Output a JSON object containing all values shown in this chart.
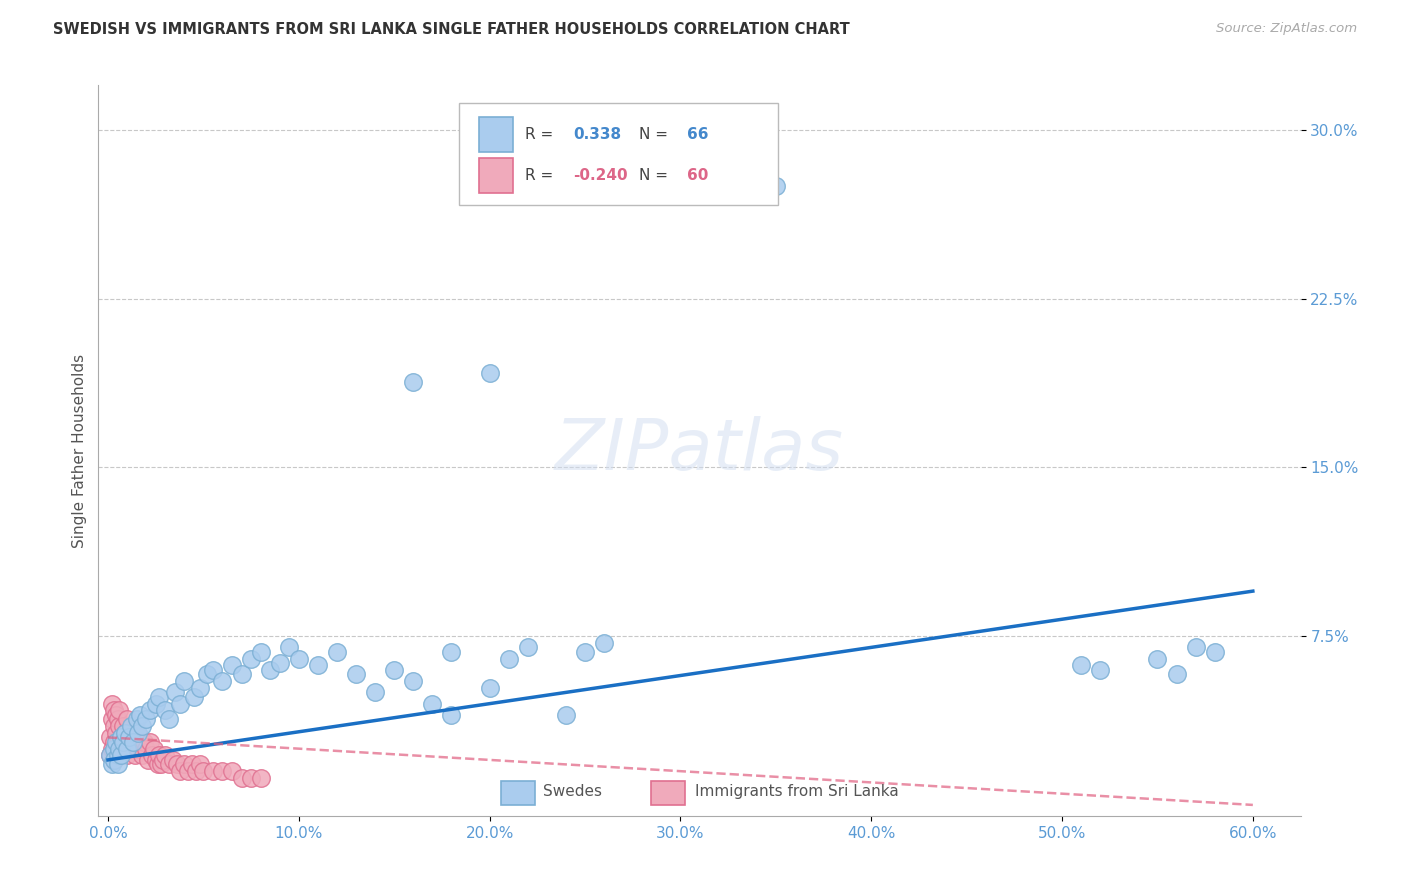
{
  "title": "SWEDISH VS IMMIGRANTS FROM SRI LANKA SINGLE FATHER HOUSEHOLDS CORRELATION CHART",
  "source": "Source: ZipAtlas.com",
  "ylabel": "Single Father Households",
  "xlim": [
    -0.005,
    0.625
  ],
  "ylim": [
    -0.005,
    0.32
  ],
  "xticks": [
    0.0,
    0.1,
    0.2,
    0.3,
    0.4,
    0.5,
    0.6
  ],
  "xticklabels": [
    "0.0%",
    "10.0%",
    "20.0%",
    "30.0%",
    "40.0%",
    "50.0%",
    "60.0%"
  ],
  "yticks": [
    0.075,
    0.15,
    0.225,
    0.3
  ],
  "yticklabels": [
    "7.5%",
    "15.0%",
    "22.5%",
    "30.0%"
  ],
  "grid_color": "#c8c8c8",
  "background": "#ffffff",
  "blue_fill": "#aaccee",
  "blue_edge": "#7bafd4",
  "pink_fill": "#f0aabb",
  "pink_edge": "#e07090",
  "trend_blue": "#1a6fc4",
  "trend_pink": "#e06080",
  "swedes_x": [
    0.001,
    0.002,
    0.003,
    0.003,
    0.004,
    0.005,
    0.005,
    0.006,
    0.007,
    0.007,
    0.008,
    0.009,
    0.01,
    0.011,
    0.012,
    0.013,
    0.015,
    0.016,
    0.017,
    0.018,
    0.02,
    0.022,
    0.025,
    0.027,
    0.03,
    0.032,
    0.035,
    0.038,
    0.04,
    0.045,
    0.048,
    0.052,
    0.055,
    0.06,
    0.065,
    0.07,
    0.075,
    0.08,
    0.085,
    0.09,
    0.095,
    0.1,
    0.11,
    0.12,
    0.13,
    0.14,
    0.15,
    0.16,
    0.17,
    0.18,
    0.2,
    0.21,
    0.22,
    0.24,
    0.26,
    0.2,
    0.35,
    0.16,
    0.25,
    0.18,
    0.51,
    0.52,
    0.55,
    0.56,
    0.57,
    0.58
  ],
  "swedes_y": [
    0.022,
    0.018,
    0.025,
    0.02,
    0.028,
    0.022,
    0.018,
    0.025,
    0.03,
    0.022,
    0.028,
    0.032,
    0.025,
    0.03,
    0.035,
    0.028,
    0.038,
    0.032,
    0.04,
    0.035,
    0.038,
    0.042,
    0.045,
    0.048,
    0.042,
    0.038,
    0.05,
    0.045,
    0.055,
    0.048,
    0.052,
    0.058,
    0.06,
    0.055,
    0.062,
    0.058,
    0.065,
    0.068,
    0.06,
    0.063,
    0.07,
    0.065,
    0.062,
    0.068,
    0.058,
    0.05,
    0.06,
    0.055,
    0.045,
    0.068,
    0.052,
    0.065,
    0.07,
    0.04,
    0.072,
    0.192,
    0.275,
    0.188,
    0.068,
    0.04,
    0.062,
    0.06,
    0.065,
    0.058,
    0.07,
    0.068
  ],
  "immigrants_x": [
    0.001,
    0.001,
    0.002,
    0.002,
    0.002,
    0.003,
    0.003,
    0.003,
    0.003,
    0.004,
    0.004,
    0.004,
    0.005,
    0.005,
    0.005,
    0.006,
    0.006,
    0.007,
    0.007,
    0.008,
    0.008,
    0.009,
    0.01,
    0.01,
    0.011,
    0.012,
    0.013,
    0.014,
    0.015,
    0.016,
    0.017,
    0.018,
    0.019,
    0.02,
    0.021,
    0.022,
    0.023,
    0.024,
    0.025,
    0.026,
    0.027,
    0.028,
    0.029,
    0.03,
    0.032,
    0.034,
    0.036,
    0.038,
    0.04,
    0.042,
    0.044,
    0.046,
    0.048,
    0.05,
    0.055,
    0.06,
    0.065,
    0.07,
    0.075,
    0.08
  ],
  "immigrants_y": [
    0.03,
    0.022,
    0.038,
    0.025,
    0.045,
    0.035,
    0.028,
    0.042,
    0.02,
    0.032,
    0.04,
    0.025,
    0.038,
    0.028,
    0.022,
    0.035,
    0.042,
    0.03,
    0.025,
    0.035,
    0.028,
    0.032,
    0.038,
    0.022,
    0.03,
    0.025,
    0.028,
    0.022,
    0.032,
    0.025,
    0.03,
    0.022,
    0.028,
    0.025,
    0.02,
    0.028,
    0.022,
    0.025,
    0.02,
    0.018,
    0.022,
    0.018,
    0.02,
    0.022,
    0.018,
    0.02,
    0.018,
    0.015,
    0.018,
    0.015,
    0.018,
    0.015,
    0.018,
    0.015,
    0.015,
    0.015,
    0.015,
    0.012,
    0.012,
    0.012
  ],
  "trend_blue_x0": 0.0,
  "trend_blue_y0": 0.02,
  "trend_blue_x1": 0.6,
  "trend_blue_y1": 0.095,
  "trend_pink_x0": 0.0,
  "trend_pink_y0": 0.03,
  "trend_pink_x1": 0.6,
  "trend_pink_y1": 0.0
}
